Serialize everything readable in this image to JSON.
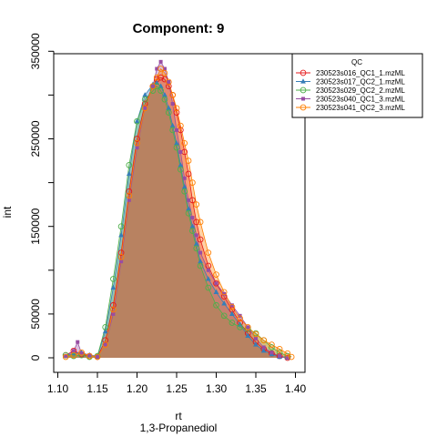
{
  "chart_data": {
    "type": "area",
    "title": "Component: 9",
    "xlabel": "rt",
    "sublabel": "1,3-Propanediol",
    "ylabel": "int",
    "xlim": [
      1.1,
      1.4
    ],
    "ylim": [
      0,
      350000
    ],
    "x_ticks": [
      "1.10",
      "1.15",
      "1.20",
      "1.25",
      "1.30",
      "1.35",
      "1.40"
    ],
    "x_tick_values": [
      1.1,
      1.15,
      1.2,
      1.25,
      1.3,
      1.35,
      1.4
    ],
    "y_ticks": [
      "0",
      "50000",
      "150000",
      "250000",
      "350000"
    ],
    "y_tick_values": [
      0,
      50000,
      150000,
      250000,
      350000
    ],
    "legend_title": "QC",
    "legend_position": "top-right",
    "series": [
      {
        "name": "230523s016_QC1_1.mzML",
        "color": "#E41A1C",
        "marker": "circle",
        "x": [
          1.11,
          1.12,
          1.13,
          1.14,
          1.15,
          1.16,
          1.17,
          1.18,
          1.19,
          1.2,
          1.21,
          1.22,
          1.225,
          1.23,
          1.235,
          1.24,
          1.245,
          1.25,
          1.255,
          1.26,
          1.265,
          1.27,
          1.275,
          1.28,
          1.29,
          1.3,
          1.31,
          1.32,
          1.33,
          1.34,
          1.35,
          1.36,
          1.37,
          1.38,
          1.39
        ],
        "y": [
          3000,
          8000,
          4000,
          2000,
          1000,
          20000,
          60000,
          120000,
          190000,
          250000,
          290000,
          310000,
          318000,
          320000,
          318000,
          310000,
          300000,
          280000,
          260000,
          235000,
          210000,
          180000,
          155000,
          135000,
          105000,
          85000,
          70000,
          55000,
          40000,
          28000,
          18000,
          10000,
          5000,
          2000,
          0
        ]
      },
      {
        "name": "230523s017_QC2_1.mzML",
        "color": "#377EB8",
        "marker": "triangle",
        "x": [
          1.11,
          1.12,
          1.13,
          1.14,
          1.15,
          1.16,
          1.17,
          1.18,
          1.19,
          1.2,
          1.21,
          1.22,
          1.225,
          1.23,
          1.235,
          1.24,
          1.245,
          1.25,
          1.255,
          1.26,
          1.265,
          1.27,
          1.275,
          1.28,
          1.29,
          1.3,
          1.31,
          1.32,
          1.33,
          1.34,
          1.35,
          1.36,
          1.37,
          1.38,
          1.39
        ],
        "y": [
          2000,
          5000,
          6000,
          3000,
          2000,
          30000,
          80000,
          140000,
          210000,
          270000,
          300000,
          312000,
          314000,
          310000,
          300000,
          285000,
          265000,
          245000,
          220000,
          195000,
          170000,
          150000,
          130000,
          110000,
          90000,
          75000,
          62000,
          50000,
          38000,
          25000,
          15000,
          8000,
          4000,
          1000,
          0
        ]
      },
      {
        "name": "230523s029_QC2_2.mzML",
        "color": "#4DAF4A",
        "marker": "circle",
        "x": [
          1.11,
          1.12,
          1.13,
          1.14,
          1.15,
          1.16,
          1.17,
          1.18,
          1.19,
          1.2,
          1.21,
          1.22,
          1.225,
          1.23,
          1.235,
          1.24,
          1.245,
          1.25,
          1.255,
          1.26,
          1.265,
          1.27,
          1.275,
          1.28,
          1.29,
          1.3,
          1.31,
          1.32,
          1.33,
          1.34,
          1.35,
          1.36,
          1.37,
          1.38,
          1.39
        ],
        "y": [
          3000,
          2000,
          3000,
          1000,
          2000,
          35000,
          90000,
          150000,
          220000,
          270000,
          295000,
          305000,
          310000,
          305000,
          295000,
          280000,
          260000,
          240000,
          215000,
          190000,
          165000,
          145000,
          125000,
          105000,
          80000,
          60000,
          48000,
          40000,
          35000,
          33000,
          28000,
          20000,
          12000,
          6000,
          2000
        ]
      },
      {
        "name": "230523s040_QC1_3.mzML",
        "color": "#984EA3",
        "marker": "square",
        "x": [
          1.11,
          1.12,
          1.125,
          1.13,
          1.14,
          1.15,
          1.16,
          1.17,
          1.18,
          1.19,
          1.2,
          1.21,
          1.22,
          1.225,
          1.23,
          1.235,
          1.24,
          1.245,
          1.25,
          1.255,
          1.26,
          1.265,
          1.27,
          1.275,
          1.28,
          1.29,
          1.3,
          1.31,
          1.32,
          1.33,
          1.34,
          1.35,
          1.36,
          1.37,
          1.38,
          1.39
        ],
        "y": [
          2000,
          8000,
          18000,
          5000,
          3000,
          1000,
          15000,
          50000,
          110000,
          180000,
          240000,
          285000,
          310000,
          330000,
          338000,
          330000,
          315000,
          290000,
          260000,
          235000,
          205000,
          180000,
          160000,
          140000,
          120000,
          100000,
          85000,
          73000,
          60000,
          48000,
          35000,
          22000,
          12000,
          6000,
          2000,
          0
        ]
      },
      {
        "name": "230523s041_QC2_3.mzML",
        "color": "#FF7F00",
        "marker": "circle",
        "x": [
          1.11,
          1.12,
          1.13,
          1.14,
          1.15,
          1.16,
          1.17,
          1.18,
          1.19,
          1.2,
          1.21,
          1.22,
          1.225,
          1.23,
          1.235,
          1.24,
          1.245,
          1.25,
          1.255,
          1.26,
          1.265,
          1.27,
          1.275,
          1.28,
          1.29,
          1.3,
          1.31,
          1.32,
          1.33,
          1.34,
          1.35,
          1.36,
          1.37,
          1.38,
          1.39,
          1.395
        ],
        "y": [
          1000,
          3000,
          6000,
          2000,
          1000,
          15000,
          55000,
          115000,
          185000,
          245000,
          285000,
          310000,
          320000,
          330000,
          325000,
          315000,
          300000,
          285000,
          265000,
          245000,
          225000,
          200000,
          175000,
          155000,
          120000,
          95000,
          75000,
          58000,
          45000,
          35000,
          27000,
          20000,
          15000,
          10000,
          5000,
          1000
        ]
      }
    ]
  }
}
